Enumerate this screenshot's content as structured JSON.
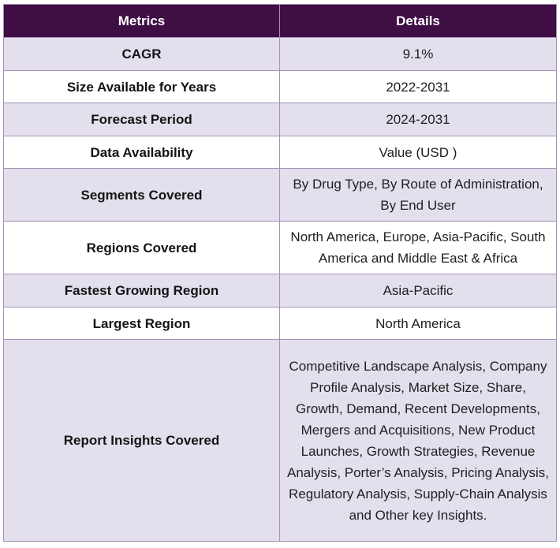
{
  "header": {
    "col1": "Metrics",
    "col2": "Details"
  },
  "rows": [
    {
      "metric": "CAGR",
      "details": "9.1%"
    },
    {
      "metric": "Size Available for Years",
      "details": "2022-2031"
    },
    {
      "metric": "Forecast Period",
      "details": "2024-2031"
    },
    {
      "metric": "Data Availability",
      "details": "Value (USD )"
    },
    {
      "metric": "Segments Covered",
      "details": "By Drug Type, By Route of Administration, By End User"
    },
    {
      "metric": "Regions Covered",
      "details": "North America, Europe, Asia-Pacific, South America and Middle East & Africa"
    },
    {
      "metric": "Fastest Growing Region",
      "details": "Asia-Pacific"
    },
    {
      "metric": "Largest Region",
      "details": "North America"
    },
    {
      "metric": "Report Insights Covered",
      "details": "Competitive Landscape Analysis, Company Profile Analysis, Market Size, Share, Growth, Demand, Recent Developments, Mergers and Acquisitions, New Product Launches, Growth Strategies, Revenue Analysis, Porter’s Analysis, Pricing Analysis, Regulatory Analysis, Supply-Chain Analysis and Other key Insights."
    }
  ]
}
